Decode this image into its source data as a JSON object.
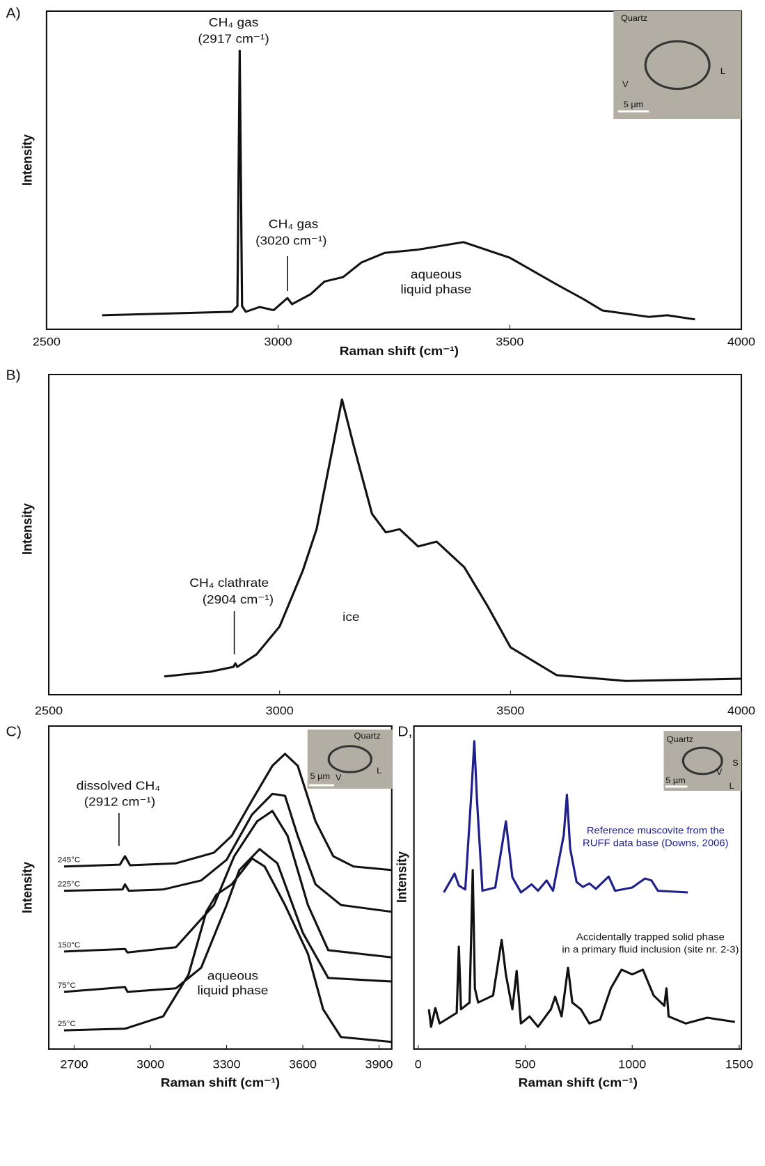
{
  "chart_data": [
    {
      "type": "line",
      "panel_label": "A)",
      "xlabel": "Raman shift (cm⁻¹)",
      "ylabel": "Intensity",
      "xlim": [
        2500,
        4000
      ],
      "xticks": [
        2500,
        3000,
        3500,
        4000
      ],
      "ylim": [
        0,
        100
      ],
      "annotations": [
        "CH₄ gas",
        "(2917 cm⁻¹)",
        "CH₄ gas",
        "(3020 cm⁻¹)",
        "aqueous",
        "liquid phase"
      ],
      "inset_labels": [
        "Quartz",
        "V",
        "L",
        "5 µm"
      ],
      "series": [
        {
          "color": "#111111",
          "x": [
            2620,
            2900,
            2912,
            2917,
            2922,
            2930,
            2960,
            2990,
            3020,
            3030,
            3070,
            3100,
            3140,
            3180,
            3230,
            3300,
            3400,
            3500,
            3600,
            3660,
            3700,
            3800,
            3840,
            3900
          ],
          "values": [
            4.4,
            5.5,
            7.3,
            87.5,
            7.3,
            5.5,
            7,
            6,
            9.8,
            7.9,
            11,
            15,
            16.4,
            21,
            24,
            25,
            27.4,
            22.5,
            14.2,
            9.4,
            5.9,
            3.9,
            4.4,
            3.1
          ]
        }
      ]
    },
    {
      "type": "line",
      "panel_label": "B)",
      "ylabel": "Intensity",
      "xlim": [
        2500,
        4000
      ],
      "xticks": [
        2500,
        3000,
        3500,
        4000
      ],
      "ylim": [
        0,
        100
      ],
      "annotations": [
        "CH₄ clathrate",
        "(2904 cm⁻¹)",
        "ice"
      ],
      "series": [
        {
          "color": "#111111",
          "x": [
            2750,
            2850,
            2900,
            2904,
            2908,
            2950,
            3000,
            3050,
            3080,
            3110,
            3135,
            3160,
            3200,
            3230,
            3260,
            3300,
            3340,
            3400,
            3450,
            3500,
            3600,
            3750,
            4000
          ],
          "values": [
            5.7,
            7.2,
            8.7,
            9.8,
            8.7,
            12.6,
            21.3,
            38.7,
            51.7,
            73.5,
            92.2,
            78,
            56.5,
            50.7,
            51.7,
            46.3,
            47.8,
            39.8,
            27.8,
            14.8,
            6.1,
            4.3,
            5
          ]
        }
      ]
    },
    {
      "type": "line",
      "panel_label": "C)",
      "xlabel": "Raman shift (cm⁻¹)",
      "ylabel": "Intensity",
      "xlim": [
        2600,
        3950
      ],
      "xticks": [
        2700,
        3000,
        3300,
        3600,
        3900
      ],
      "ylim": [
        0,
        100
      ],
      "annotations": [
        "dissolved CH₄",
        "(2912 cm⁻¹)",
        "aqueous",
        "liquid phase"
      ],
      "inset_labels": [
        "Quartz",
        "V",
        "L",
        "5 µm"
      ],
      "series": [
        {
          "name": "245°C",
          "color": "#111111",
          "x": [
            2660,
            2880,
            2900,
            2920,
            3100,
            3250,
            3320,
            3400,
            3480,
            3530,
            3580,
            3650,
            3720,
            3800,
            3950
          ],
          "values": [
            56.5,
            57.1,
            59.7,
            56.9,
            57.5,
            60.8,
            66,
            77,
            87.7,
            91.4,
            87.7,
            70.5,
            59.7,
            56.5,
            55.4
          ]
        },
        {
          "name": "225°C",
          "color": "#111111",
          "x": [
            2660,
            2890,
            2900,
            2915,
            3050,
            3200,
            3300,
            3400,
            3480,
            3530,
            3580,
            3650,
            3750,
            3950
          ],
          "values": [
            49,
            49.4,
            51,
            49,
            49.4,
            52.2,
            58.6,
            72.6,
            79,
            78.4,
            66,
            51,
            44.6,
            42.5
          ]
        },
        {
          "name": "150°C",
          "color": "#111111",
          "x": [
            2660,
            2900,
            2910,
            3100,
            3250,
            3330,
            3420,
            3480,
            3540,
            3620,
            3700,
            3950
          ],
          "values": [
            30.2,
            31,
            29.9,
            31.5,
            44.6,
            59.7,
            70.5,
            73.7,
            66,
            44.6,
            30.6,
            28.4
          ]
        },
        {
          "name": "75°C",
          "color": "#111111",
          "x": [
            2660,
            2900,
            2910,
            3100,
            3200,
            3300,
            3350,
            3430,
            3500,
            3600,
            3700,
            3950
          ],
          "values": [
            17.7,
            19.2,
            17.7,
            18.8,
            25.2,
            44.6,
            55.4,
            61.9,
            57.5,
            36,
            22,
            20.9
          ]
        },
        {
          "name": "25°C",
          "color": "#111111",
          "x": [
            2660,
            2900,
            3050,
            3150,
            3220,
            3260,
            3320,
            3400,
            3450,
            3530,
            3620,
            3680,
            3750,
            3950
          ],
          "values": [
            5.8,
            6.3,
            10.1,
            23,
            42.5,
            47.8,
            51,
            59,
            56.5,
            44.6,
            29.5,
            12.3,
            3.7,
            2.2
          ]
        }
      ]
    },
    {
      "type": "line",
      "panel_label": "D,",
      "xlabel": "Raman shift (cm⁻¹)",
      "ylabel": "Intensity",
      "xlim": [
        -20,
        1510
      ],
      "xticks": [
        0,
        500,
        1000,
        1500
      ],
      "ylim": [
        0,
        100
      ],
      "annotations": [
        "Reference muscovite from the",
        "RUFF data base (Downs, 2006)",
        "Accidentally trapped solid phase",
        "in a primary fluid inclusion (site nr. 2-3)"
      ],
      "inset_labels": [
        "Quartz",
        "S",
        "V",
        "L",
        "5 µm"
      ],
      "series": [
        {
          "color": "#1f1f8a",
          "x": [
            120,
            170,
            190,
            220,
            250,
            262,
            275,
            300,
            360,
            410,
            440,
            480,
            530,
            560,
            600,
            630,
            680,
            695,
            710,
            740,
            770,
            800,
            830,
            890,
            920,
            1000,
            1060,
            1090,
            1120,
            1260
          ],
          "values": [
            48.5,
            54.3,
            50.6,
            49.4,
            81,
            95.3,
            76.9,
            49,
            50,
            70.5,
            53.2,
            48.5,
            51,
            49,
            52.2,
            49,
            66.2,
            78.7,
            62.1,
            51.7,
            50.2,
            51.3,
            49.6,
            53.4,
            49,
            50,
            52.8,
            52.2,
            49,
            48.5
          ]
        },
        {
          "color": "#111111",
          "x": [
            50,
            60,
            80,
            100,
            180,
            190,
            200,
            240,
            255,
            265,
            280,
            350,
            390,
            410,
            440,
            460,
            480,
            520,
            560,
            620,
            640,
            670,
            700,
            720,
            760,
            800,
            850,
            900,
            950,
            1000,
            1050,
            1100,
            1150,
            1160,
            1170,
            1250,
            1350,
            1480
          ],
          "values": [
            12.3,
            6.9,
            12.7,
            7.9,
            11.2,
            31.7,
            12.3,
            14.4,
            55.4,
            18.8,
            14.4,
            16.6,
            33.8,
            23,
            12.3,
            24.2,
            7.9,
            10.1,
            6.9,
            12.3,
            16.2,
            10.1,
            25.2,
            14.4,
            12.3,
            7.9,
            9.1,
            18.8,
            24.6,
            23.1,
            24.6,
            16.6,
            13.4,
            18.8,
            10.1,
            7.9,
            9.7,
            8.4
          ]
        }
      ]
    }
  ]
}
